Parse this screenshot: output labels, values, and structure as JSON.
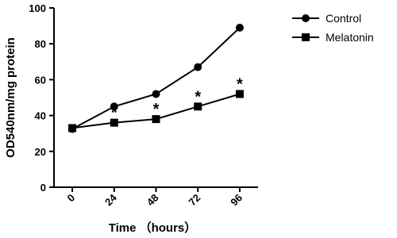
{
  "chart_data": {
    "type": "line",
    "x_label": "Time （hours）",
    "y_label": "OD540nm/mg protein",
    "x": [
      0,
      24,
      48,
      72,
      96
    ],
    "xlim": [
      -10.5,
      106.5
    ],
    "xticks": [
      0,
      24,
      48,
      72,
      96
    ],
    "ylim": [
      0,
      100
    ],
    "yticks": [
      0,
      20,
      40,
      60,
      80,
      100
    ],
    "legend": "top-right",
    "series": [
      {
        "name": "Control",
        "color": "#000000",
        "marker": "circle",
        "values": [
          32.5,
          45,
          52,
          67,
          89
        ]
      },
      {
        "name": "Melatonin",
        "color": "#000000",
        "marker": "square",
        "values": [
          33,
          36,
          38,
          45,
          52
        ],
        "annotations": [
          null,
          "*",
          "*",
          "*",
          "*"
        ]
      }
    ]
  }
}
